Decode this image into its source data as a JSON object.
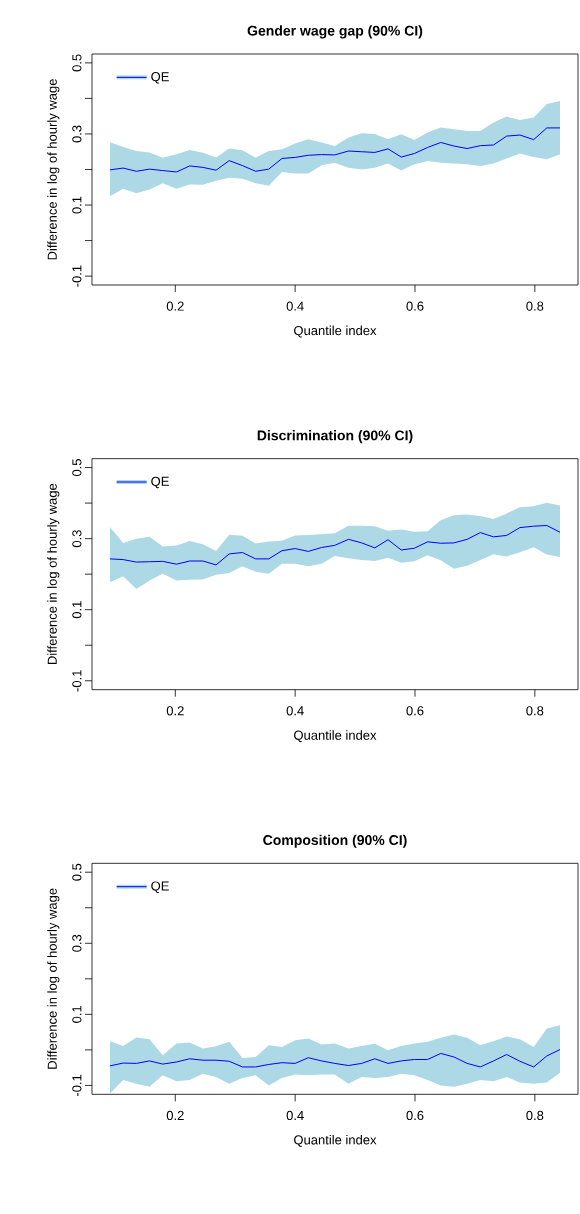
{
  "chart_data": [
    {
      "type": "line",
      "title": "Gender wage gap (90% CI)",
      "xlabel": "Quantile index",
      "ylabel": "Difference in log of hourly wage",
      "legend": "top left",
      "xlim": [
        0.061,
        0.872
      ],
      "ylim": [
        -0.125,
        0.525
      ],
      "xticks": [
        0.2,
        0.4,
        0.6,
        0.8
      ],
      "yticks": [
        -0.1,
        {
          "value": 0,
          "label": null
        },
        0.1,
        {
          "value": 0.2,
          "label": null
        },
        0.3,
        {
          "value": 0.4,
          "label": null
        },
        0.5
      ],
      "x": [
        0.091,
        0.113,
        0.135,
        0.157,
        0.179,
        0.202,
        0.224,
        0.246,
        0.268,
        0.29,
        0.312,
        0.334,
        0.356,
        0.378,
        0.4,
        0.422,
        0.444,
        0.466,
        0.489,
        0.511,
        0.533,
        0.555,
        0.577,
        0.599,
        0.621,
        0.643,
        0.665,
        0.687,
        0.709,
        0.731,
        0.753,
        0.775,
        0.798,
        0.82,
        0.842
      ],
      "series": [
        {
          "name": "QE",
          "color": "#0000ff",
          "values": [
            0.199,
            0.204,
            0.195,
            0.201,
            0.197,
            0.193,
            0.21,
            0.206,
            0.198,
            0.225,
            0.211,
            0.195,
            0.201,
            0.231,
            0.234,
            0.24,
            0.242,
            0.241,
            0.252,
            0.25,
            0.248,
            0.258,
            0.235,
            0.245,
            0.262,
            0.276,
            0.266,
            0.259,
            0.267,
            0.269,
            0.294,
            0.297,
            0.284,
            0.317,
            0.317
          ],
          "upper": [
            0.277,
            0.263,
            0.252,
            0.248,
            0.233,
            0.243,
            0.255,
            0.247,
            0.234,
            0.259,
            0.254,
            0.233,
            0.252,
            0.257,
            0.273,
            0.285,
            0.276,
            0.266,
            0.29,
            0.302,
            0.3,
            0.285,
            0.299,
            0.283,
            0.304,
            0.318,
            0.313,
            0.308,
            0.308,
            0.332,
            0.349,
            0.339,
            0.346,
            0.384,
            0.393
          ],
          "lower": [
            0.125,
            0.146,
            0.133,
            0.144,
            0.161,
            0.146,
            0.158,
            0.157,
            0.168,
            0.177,
            0.174,
            0.161,
            0.154,
            0.193,
            0.189,
            0.189,
            0.212,
            0.219,
            0.205,
            0.2,
            0.205,
            0.217,
            0.197,
            0.215,
            0.224,
            0.219,
            0.217,
            0.215,
            0.21,
            0.217,
            0.231,
            0.245,
            0.235,
            0.229,
            0.243
          ]
        }
      ]
    },
    {
      "type": "line",
      "title": "Discrimination (90% CI)",
      "xlabel": "Quantile index",
      "ylabel": "Difference in log of hourly wage",
      "legend": "top left",
      "xlim": [
        0.061,
        0.872
      ],
      "ylim": [
        -0.125,
        0.525
      ],
      "xticks": [
        0.2,
        0.4,
        0.6,
        0.8
      ],
      "yticks": [
        -0.1,
        {
          "value": 0,
          "label": null
        },
        0.1,
        {
          "value": 0.2,
          "label": null
        },
        0.3,
        {
          "value": 0.4,
          "label": null
        },
        0.5
      ],
      "x": [
        0.091,
        0.113,
        0.135,
        0.157,
        0.179,
        0.202,
        0.224,
        0.246,
        0.268,
        0.29,
        0.312,
        0.334,
        0.356,
        0.378,
        0.4,
        0.422,
        0.444,
        0.466,
        0.489,
        0.511,
        0.533,
        0.555,
        0.577,
        0.599,
        0.621,
        0.643,
        0.665,
        0.687,
        0.709,
        0.731,
        0.753,
        0.775,
        0.798,
        0.82,
        0.842
      ],
      "series": [
        {
          "name": "QE",
          "color": "#0000ff",
          "values": [
            0.243,
            0.241,
            0.234,
            0.235,
            0.236,
            0.228,
            0.237,
            0.237,
            0.226,
            0.257,
            0.261,
            0.243,
            0.243,
            0.266,
            0.272,
            0.264,
            0.275,
            0.281,
            0.298,
            0.288,
            0.274,
            0.297,
            0.268,
            0.273,
            0.291,
            0.287,
            0.288,
            0.298,
            0.317,
            0.305,
            0.309,
            0.331,
            0.335,
            0.337,
            0.318
          ],
          "upper": [
            0.333,
            0.288,
            0.3,
            0.305,
            0.278,
            0.281,
            0.293,
            0.284,
            0.265,
            0.311,
            0.308,
            0.286,
            0.292,
            0.294,
            0.309,
            0.31,
            0.312,
            0.315,
            0.336,
            0.336,
            0.335,
            0.322,
            0.326,
            0.319,
            0.321,
            0.352,
            0.366,
            0.368,
            0.364,
            0.355,
            0.371,
            0.388,
            0.391,
            0.401,
            0.393
          ],
          "lower": [
            0.177,
            0.194,
            0.158,
            0.182,
            0.201,
            0.182,
            0.184,
            0.185,
            0.198,
            0.203,
            0.222,
            0.207,
            0.201,
            0.229,
            0.229,
            0.222,
            0.229,
            0.251,
            0.245,
            0.24,
            0.237,
            0.246,
            0.232,
            0.236,
            0.253,
            0.239,
            0.215,
            0.224,
            0.24,
            0.256,
            0.25,
            0.262,
            0.276,
            0.255,
            0.248
          ]
        }
      ]
    },
    {
      "type": "line",
      "title": "Composition (90% CI)",
      "xlabel": "Quantile index",
      "ylabel": "Difference in log of hourly wage",
      "legend": "top left",
      "xlim": [
        0.061,
        0.872
      ],
      "ylim": [
        -0.125,
        0.525
      ],
      "xticks": [
        0.2,
        0.4,
        0.6,
        0.8
      ],
      "yticks": [
        -0.1,
        {
          "value": 0,
          "label": null
        },
        0.1,
        {
          "value": 0.2,
          "label": null
        },
        0.3,
        {
          "value": 0.4,
          "label": null
        },
        0.5
      ],
      "x": [
        0.091,
        0.113,
        0.135,
        0.157,
        0.179,
        0.202,
        0.224,
        0.246,
        0.268,
        0.29,
        0.312,
        0.334,
        0.356,
        0.378,
        0.4,
        0.422,
        0.444,
        0.466,
        0.489,
        0.511,
        0.533,
        0.555,
        0.577,
        0.599,
        0.621,
        0.643,
        0.665,
        0.687,
        0.709,
        0.731,
        0.753,
        0.775,
        0.798,
        0.82,
        0.842
      ],
      "series": [
        {
          "name": "QE",
          "color": "#0000ff",
          "values": [
            -0.045,
            -0.037,
            -0.038,
            -0.031,
            -0.04,
            -0.034,
            -0.025,
            -0.029,
            -0.029,
            -0.032,
            -0.048,
            -0.048,
            -0.041,
            -0.036,
            -0.038,
            -0.022,
            -0.031,
            -0.038,
            -0.044,
            -0.038,
            -0.025,
            -0.038,
            -0.031,
            -0.027,
            -0.027,
            -0.01,
            -0.02,
            -0.038,
            -0.048,
            -0.031,
            -0.013,
            -0.032,
            -0.048,
            -0.017,
            0.001
          ],
          "upper": [
            0.024,
            0.011,
            0.035,
            0.03,
            -0.015,
            0.018,
            0.021,
            0.004,
            0.01,
            0.023,
            -0.023,
            -0.02,
            0.013,
            0.008,
            0.027,
            0.032,
            0.015,
            0.018,
            0.004,
            0.011,
            0.017,
            -0.001,
            0.011,
            0.018,
            0.023,
            0.034,
            0.043,
            0.034,
            0.013,
            0.024,
            0.038,
            0.03,
            0.008,
            0.06,
            0.069
          ],
          "lower": [
            -0.123,
            -0.085,
            -0.095,
            -0.104,
            -0.071,
            -0.088,
            -0.085,
            -0.067,
            -0.076,
            -0.095,
            -0.079,
            -0.071,
            -0.1,
            -0.079,
            -0.069,
            -0.071,
            -0.069,
            -0.069,
            -0.095,
            -0.076,
            -0.079,
            -0.076,
            -0.067,
            -0.071,
            -0.085,
            -0.1,
            -0.104,
            -0.095,
            -0.085,
            -0.088,
            -0.076,
            -0.092,
            -0.095,
            -0.092,
            -0.064
          ]
        }
      ]
    }
  ]
}
